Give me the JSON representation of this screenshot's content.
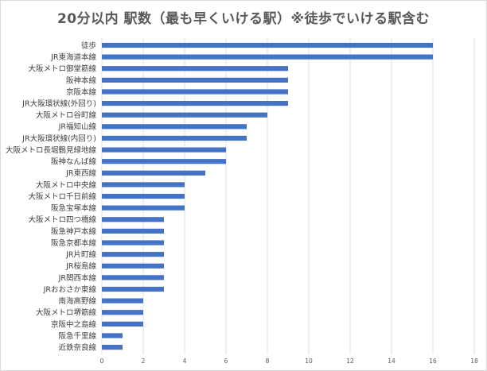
{
  "chart_data": {
    "type": "bar",
    "orientation": "horizontal",
    "title": "20分以内 駅数（最も早くいける駅）※徒歩でいける駅含む",
    "xlabel": "",
    "ylabel": "",
    "xlim": [
      0,
      18
    ],
    "xticks": [
      "0",
      "2",
      "4",
      "6",
      "8",
      "10",
      "12",
      "14",
      "16",
      "18"
    ],
    "grid": true,
    "bar_color": "#4472c4",
    "categories": [
      "徒歩",
      "JR東海道本線",
      "大阪メトロ御堂筋線",
      "阪神本線",
      "京阪本線",
      "JR大阪環状線(外回り)",
      "大阪メトロ谷町線",
      "JR福知山線",
      "JR大阪環状線(内回り)",
      "大阪メトロ長堀鶴見緑地線",
      "阪神なんば線",
      "JR東西線",
      "大阪メトロ中央線",
      "大阪メトロ千日前線",
      "阪急宝塚本線",
      "大阪メトロ四つ橋線",
      "阪急神戸本線",
      "阪急京都本線",
      "JR片町線",
      "JR桜島線",
      "JR関西本線",
      "JRおおさか東線",
      "南海高野線",
      "大阪メトロ堺筋線",
      "京阪中之島線",
      "阪急千里線",
      "近鉄奈良線"
    ],
    "values": [
      16,
      16,
      9,
      9,
      9,
      9,
      8,
      7,
      7,
      6,
      6,
      5,
      4,
      4,
      4,
      3,
      3,
      3,
      3,
      3,
      3,
      3,
      2,
      2,
      2,
      1,
      1
    ]
  }
}
